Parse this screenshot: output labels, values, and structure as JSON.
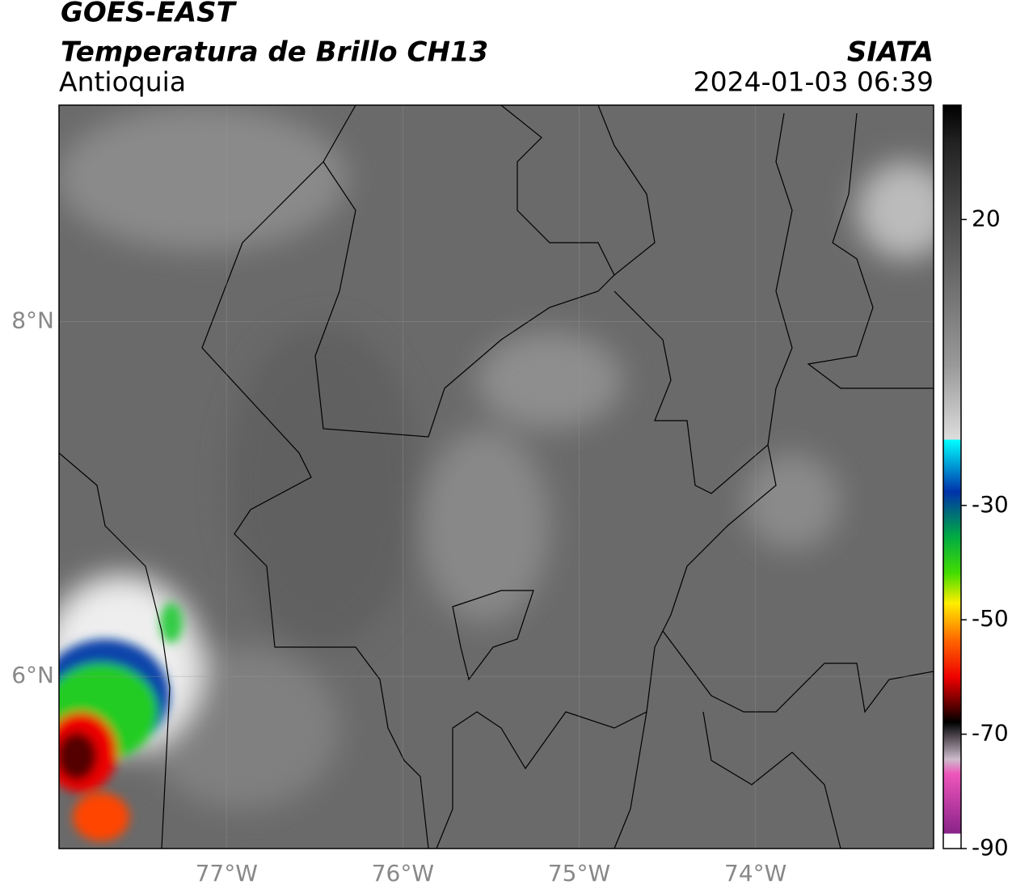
{
  "header": {
    "title": "GOES-EAST",
    "subtitle": "Temperatura de Brillo CH13",
    "region": "Antioquia",
    "source": "SIATA",
    "datetime": "2024-01-03 06:39"
  },
  "map": {
    "xlim": [
      -77.95,
      -72.99
    ],
    "ylim": [
      5.03,
      9.22
    ],
    "xticks": [
      {
        "value": -77,
        "label": "77°W"
      },
      {
        "value": -76,
        "label": "76°W"
      },
      {
        "value": -75,
        "label": "75°W"
      },
      {
        "value": -74,
        "label": "74°W"
      }
    ],
    "yticks": [
      {
        "value": 8,
        "label": "8°N"
      },
      {
        "value": 6,
        "label": "6°N"
      }
    ]
  },
  "colorbar": {
    "lim": [
      -90,
      40
    ],
    "ticks": [
      20,
      -30,
      -50,
      -70,
      -90
    ]
  }
}
